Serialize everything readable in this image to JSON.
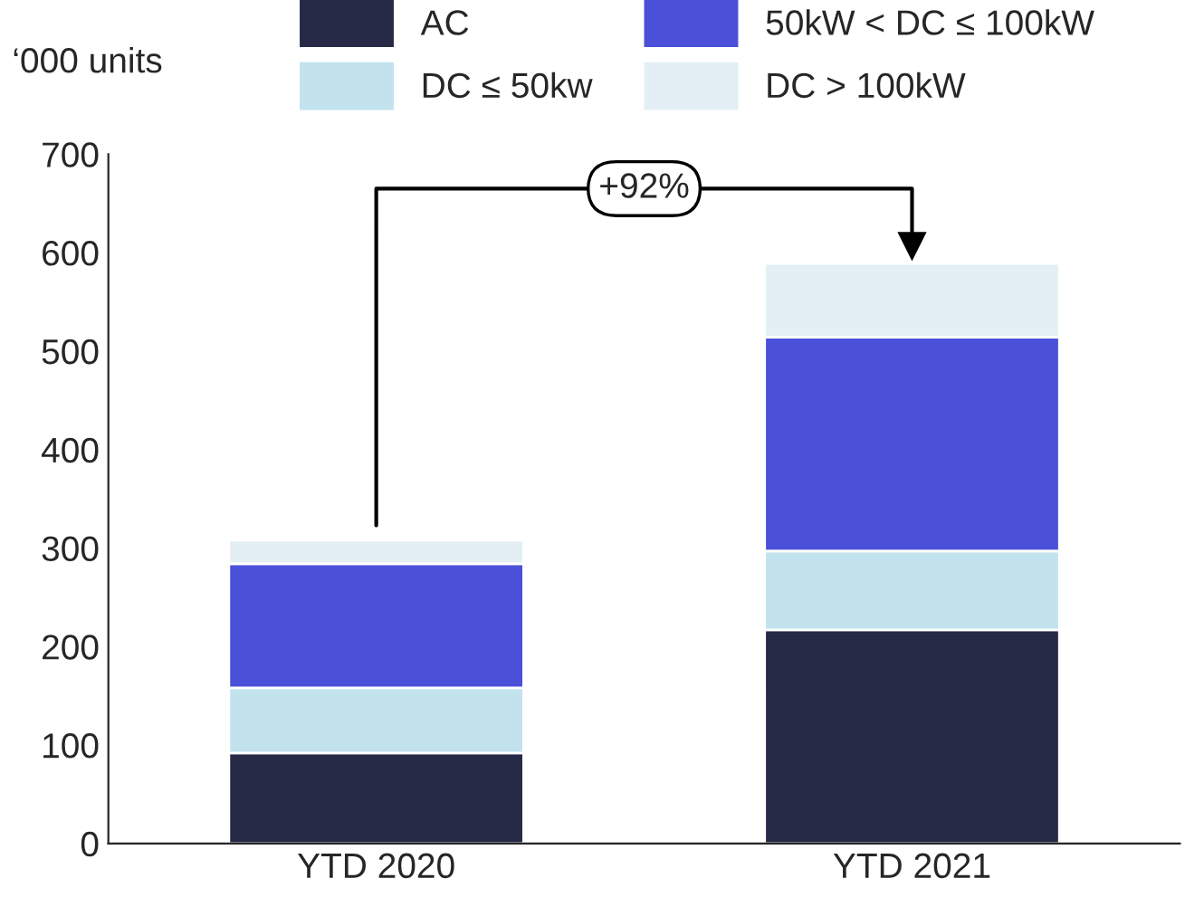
{
  "chart_data": {
    "type": "bar",
    "stacked": true,
    "ylabel": "‘000 units",
    "categories": [
      "YTD 2020",
      "YTD 2021"
    ],
    "series": [
      {
        "name": "AC",
        "color": "#272a46",
        "values": [
          92,
          217
        ]
      },
      {
        "name": "DC ≤ 50kw",
        "color": "#c2e2ee",
        "values": [
          66,
          80
        ]
      },
      {
        "name": "50kW < DC ≤ 100kW",
        "color": "#4a50d8",
        "values": [
          126,
          217
        ]
      },
      {
        "name": "DC > 100kW",
        "color": "#e3eff4",
        "values": [
          24,
          75
        ]
      }
    ],
    "ylim": [
      0,
      700
    ],
    "yticks": [
      0,
      100,
      200,
      300,
      400,
      500,
      600,
      700
    ],
    "annotations": [
      "+92%"
    ],
    "legend": "top",
    "grid": false
  }
}
